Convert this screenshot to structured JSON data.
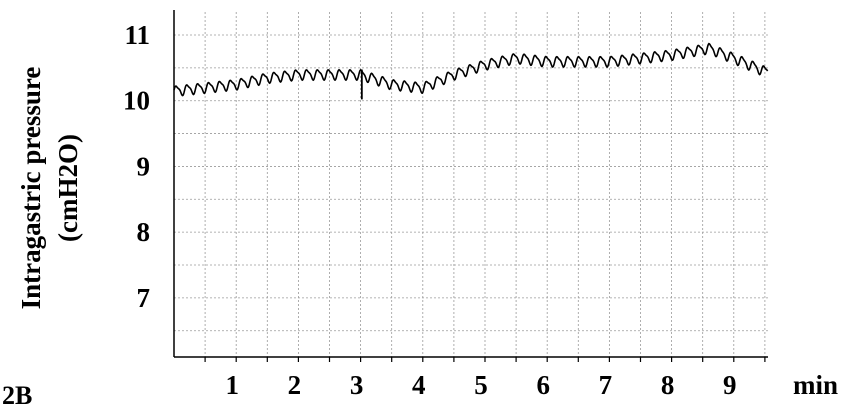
{
  "panel_label": "2B",
  "chart_data": {
    "type": "line",
    "ylabel_line1": "Intragastric pressure",
    "ylabel_line2": "(cmH2O)",
    "x_unit_label": "min",
    "x_ticks": [
      "1",
      "2",
      "3",
      "4",
      "5",
      "6",
      "7",
      "8",
      "9"
    ],
    "x_tick_values": [
      1,
      2,
      3,
      4,
      5,
      6,
      7,
      8,
      9
    ],
    "y_ticks": [
      "7",
      "8",
      "9",
      "10",
      "11"
    ],
    "y_tick_values": [
      7,
      8,
      9,
      10,
      11
    ],
    "xlim": [
      0,
      9.55
    ],
    "ylim": [
      6.1,
      11.35
    ],
    "grid": true,
    "series": [
      {
        "color": "#000000",
        "baseline": [
          [
            0,
            10.15
          ],
          [
            1,
            10.25
          ],
          [
            1.5,
            10.35
          ],
          [
            2,
            10.4
          ],
          [
            3,
            10.4
          ],
          [
            3.5,
            10.25
          ],
          [
            4,
            10.2
          ],
          [
            4.5,
            10.4
          ],
          [
            5,
            10.55
          ],
          [
            5.5,
            10.65
          ],
          [
            6,
            10.6
          ],
          [
            7,
            10.6
          ],
          [
            8,
            10.7
          ],
          [
            8.6,
            10.8
          ],
          [
            9,
            10.65
          ],
          [
            9.5,
            10.45
          ]
        ],
        "oscillation_period_min": 0.175,
        "oscillation_amplitude": 0.07,
        "spike": {
          "x": 3.02,
          "y": 10.02
        }
      }
    ]
  }
}
